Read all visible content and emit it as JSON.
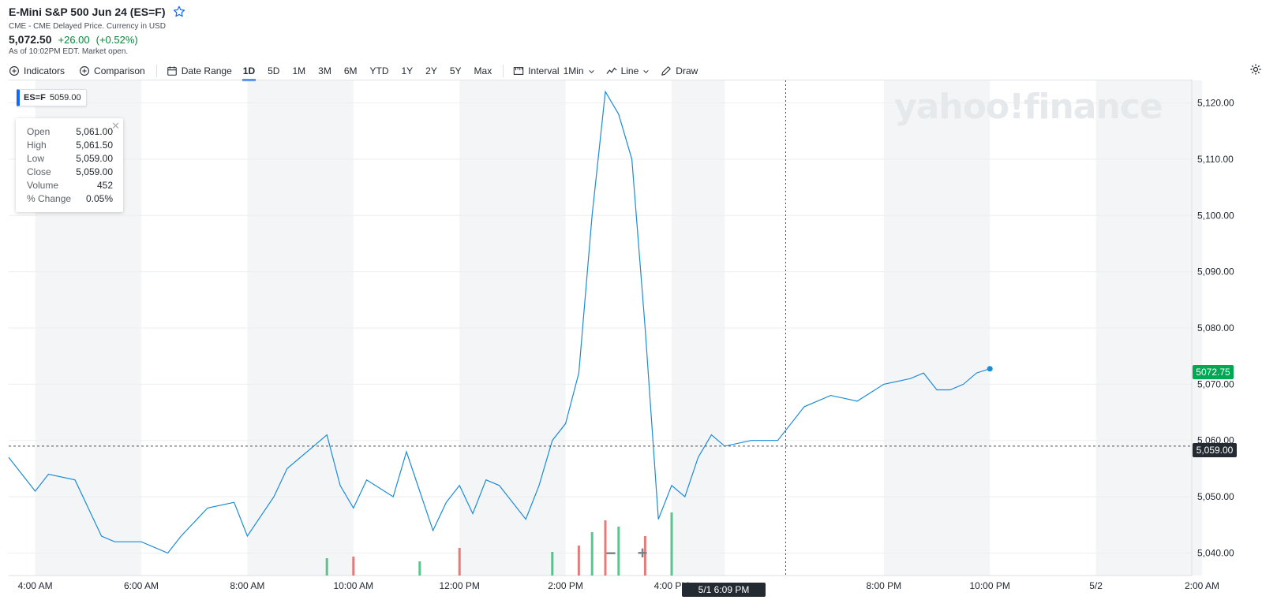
{
  "header": {
    "title": "E-Mini S&P 500 Jun 24 (ES=F)",
    "subtitle": "CME - CME Delayed Price. Currency in USD",
    "price": "5,072.50",
    "change": "+26.00",
    "change_pct": "(+0.52%)",
    "as_of": "As of 10:02PM EDT. Market open."
  },
  "toolbar": {
    "indicators": "Indicators",
    "comparison": "Comparison",
    "date_range": "Date Range",
    "ranges": [
      "1D",
      "5D",
      "1M",
      "3M",
      "6M",
      "YTD",
      "1Y",
      "2Y",
      "5Y",
      "Max"
    ],
    "active_range": "1D",
    "interval_label": "Interval",
    "interval_value": "1Min",
    "line_label": "Line",
    "draw_label": "Draw"
  },
  "legend": {
    "symbol": "ES=F",
    "value": "5059.00"
  },
  "tooltip": {
    "rows": [
      {
        "k": "Open",
        "v": "5,061.00"
      },
      {
        "k": "High",
        "v": "5,061.50"
      },
      {
        "k": "Low",
        "v": "5,059.00"
      },
      {
        "k": "Close",
        "v": "5,059.00"
      },
      {
        "k": "Volume",
        "v": "452"
      },
      {
        "k": "% Change",
        "v": "0.05%"
      }
    ]
  },
  "watermark": "yahoo!finance",
  "zoom": {
    "minus": "−",
    "plus": "+"
  },
  "badges": {
    "last": "5072.75",
    "crosshair_price": "5,059.00",
    "crosshair_time": "5/1 6:09 PM"
  },
  "colors": {
    "line": "#1a8cd8",
    "up": "#2eb872",
    "down": "#e05a5a",
    "last_badge": "#00a854"
  },
  "chart_data": {
    "type": "line",
    "series": [
      {
        "name": "ES=F",
        "x": [
          "3:30 AM",
          "4:00 AM",
          "4:15 AM",
          "4:45 AM",
          "5:15 AM",
          "5:30 AM",
          "6:00 AM",
          "6:30 AM",
          "6:45 AM",
          "7:15 AM",
          "7:45 AM",
          "8:00 AM",
          "8:30 AM",
          "8:45 AM",
          "9:15 AM",
          "9:30 AM",
          "9:45 AM",
          "10:00 AM",
          "10:15 AM",
          "10:45 AM",
          "11:00 AM",
          "11:15 AM",
          "11:30 AM",
          "11:45 AM",
          "12:00 PM",
          "12:15 PM",
          "12:30 PM",
          "12:45 PM",
          "1:15 PM",
          "1:30 PM",
          "1:45 PM",
          "2:00 PM",
          "2:15 PM",
          "2:30 PM",
          "2:45 PM",
          "3:00 PM",
          "3:15 PM",
          "3:30 PM",
          "3:45 PM",
          "4:00 PM",
          "4:15 PM",
          "4:30 PM",
          "4:45 PM",
          "5:00 PM",
          "5:30 PM",
          "6:00 PM",
          "6:30 PM",
          "7:00 PM",
          "7:30 PM",
          "8:00 PM",
          "8:30 PM",
          "8:45 PM",
          "9:00 PM",
          "9:15 PM",
          "9:30 PM",
          "9:45 PM",
          "10:00 PM"
        ],
        "values": [
          5057,
          5051,
          5054,
          5053,
          5043,
          5042,
          5042,
          5040,
          5043,
          5048,
          5049,
          5043,
          5050,
          5055,
          5059,
          5061,
          5052,
          5048,
          5053,
          5050,
          5058,
          5051,
          5044,
          5049,
          5052,
          5047,
          5053,
          5052,
          5046,
          5052,
          5060,
          5063,
          5072,
          5100,
          5122,
          5118,
          5110,
          5080,
          5046,
          5052,
          5050,
          5057,
          5061,
          5059,
          5060,
          5060,
          5066,
          5068,
          5067,
          5070,
          5071,
          5072,
          5069,
          5069,
          5070,
          5072,
          5072.75
        ]
      }
    ],
    "volume": [
      {
        "x": "9:30 AM",
        "v": 22
      },
      {
        "x": "10:00 AM",
        "v": 24
      },
      {
        "x": "11:15 AM",
        "v": 18
      },
      {
        "x": "12:00 PM",
        "v": 35
      },
      {
        "x": "1:45 PM",
        "v": 30
      },
      {
        "x": "2:15 PM",
        "v": 38
      },
      {
        "x": "2:30 PM",
        "v": 55
      },
      {
        "x": "2:45 PM",
        "v": 70
      },
      {
        "x": "3:00 PM",
        "v": 62
      },
      {
        "x": "3:30 PM",
        "v": 50
      },
      {
        "x": "4:00 PM",
        "v": 80
      }
    ],
    "y_ticks": [
      "5,040.00",
      "5,050.00",
      "5,060.00",
      "5,070.00",
      "5,080.00",
      "5,090.00",
      "5,100.00",
      "5,110.00",
      "5,120.00"
    ],
    "x_ticks": [
      "4:00 AM",
      "6:00 AM",
      "8:00 AM",
      "10:00 AM",
      "12:00 PM",
      "2:00 PM",
      "4:00 PM",
      "8:00 PM",
      "10:00 PM",
      "5/2",
      "2:00 AM"
    ],
    "ylim": [
      5036,
      5124
    ],
    "reference_line": 5059,
    "grid": true
  }
}
